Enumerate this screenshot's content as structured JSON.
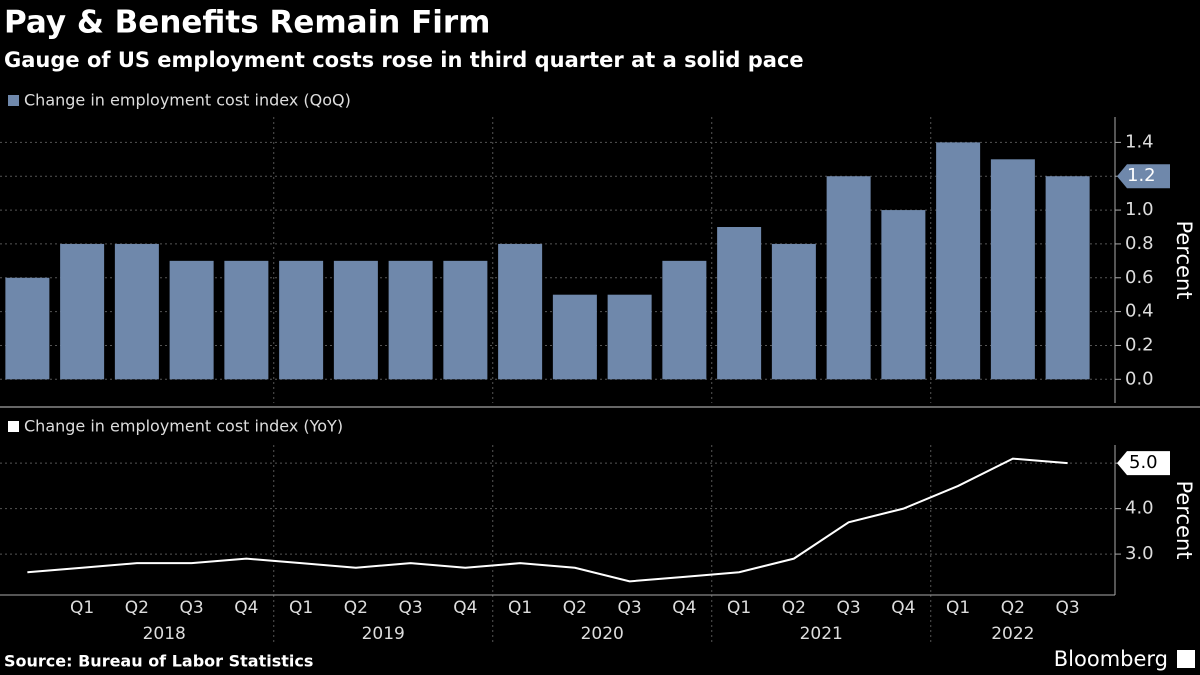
{
  "chart_data": [
    {
      "type": "bar",
      "title": "Pay & Benefits Remain Firm",
      "subtitle": "Gauge of US employment costs rose in third quarter at a solid pace",
      "y_label": "Percent",
      "series": [
        {
          "name": "Change in employment cost index (QoQ)",
          "color": "#6f88ab",
          "values": [
            0.6,
            0.8,
            0.8,
            0.7,
            0.7,
            0.7,
            0.7,
            0.7,
            0.7,
            0.8,
            0.5,
            0.5,
            0.7,
            0.9,
            0.8,
            1.2,
            1.0,
            1.4,
            1.3,
            1.2
          ]
        }
      ],
      "ylim": [
        -0.14,
        1.55
      ],
      "yticks": [
        {
          "value": 0,
          "label": "0.0"
        },
        0.2,
        0.4,
        0.6,
        0.8,
        {
          "value": 1,
          "label": "1.0"
        },
        1.2,
        1.4
      ],
      "grid": true
    },
    {
      "type": "line",
      "y_label": "Percent",
      "categories": [
        null,
        "Q1",
        "Q2",
        "Q3",
        "Q4",
        "Q1",
        "Q2",
        "Q3",
        "Q4",
        "Q1",
        "Q2",
        "Q3",
        "Q4",
        "Q1",
        "Q2",
        "Q3",
        "Q4",
        "Q1",
        "Q2",
        "Q3"
      ],
      "groups": [
        "2018",
        "2019",
        "2020",
        "2021",
        "2022"
      ],
      "series": [
        {
          "name": "Change in employment cost index (YoY)",
          "color": "#ffffff",
          "values": [
            2.6,
            2.7,
            2.8,
            2.8,
            2.9,
            2.8,
            2.7,
            2.8,
            2.7,
            2.8,
            2.7,
            2.4,
            2.5,
            2.6,
            2.9,
            3.7,
            4.0,
            4.5,
            5.1,
            5.0
          ],
          "value_labels": [
            null,
            null,
            null,
            null,
            null,
            null,
            null,
            null,
            null,
            null,
            null,
            null,
            null,
            null,
            null,
            null,
            null,
            null,
            null,
            "5.0"
          ]
        }
      ],
      "ylim": [
        2.1,
        5.4
      ],
      "yticks": [
        {
          "value": 3,
          "label": "3.0"
        },
        {
          "value": 4,
          "label": "4.0"
        },
        {
          "value": 5,
          "label": "5.0"
        }
      ],
      "grid": true
    }
  ],
  "footer": {
    "source": "Source: Bureau of Labor Statistics",
    "brand": "Bloomberg"
  }
}
